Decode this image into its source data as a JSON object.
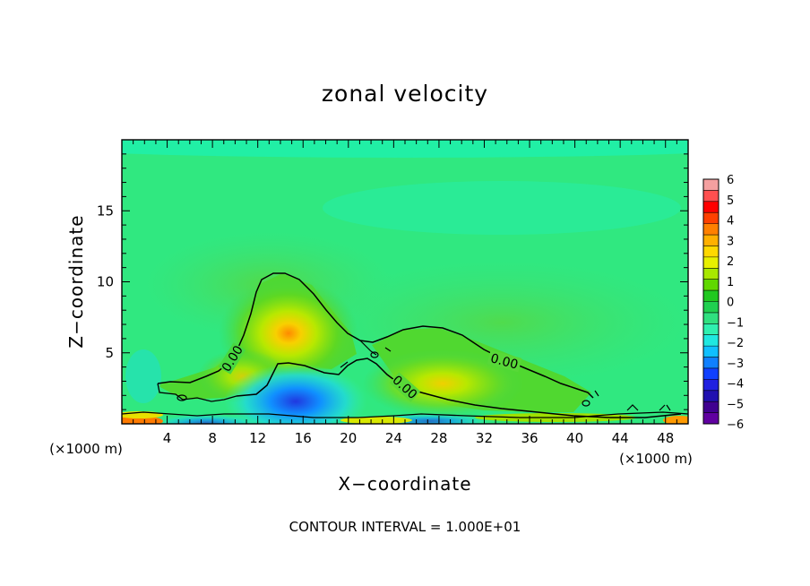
{
  "chart_data": {
    "type": "heatmap",
    "title": "zonal velocity",
    "xlabel": "X−coordinate",
    "ylabel": "Z−coordinate",
    "x_unit": "(×1000 m)",
    "x_unit_right": "(×1000 m)",
    "xlim": [
      0,
      50
    ],
    "ylim": [
      0,
      20
    ],
    "x_ticks": [
      4,
      8,
      12,
      16,
      20,
      24,
      28,
      32,
      36,
      40,
      44,
      48
    ],
    "y_ticks": [
      5,
      10,
      15
    ],
    "colorbar": {
      "ticks": [
        "6",
        "5",
        "4",
        "3",
        "2",
        "1",
        "0",
        "−1",
        "−2",
        "−3",
        "−4",
        "−5",
        "−6"
      ],
      "range": [
        -6,
        6
      ],
      "colors": [
        "#f4a0a0",
        "#ff5050",
        "#ff0000",
        "#ff4000",
        "#ff8000",
        "#ffb000",
        "#ffd800",
        "#e8f000",
        "#a8e800",
        "#60d800",
        "#20c820",
        "#20d050",
        "#30e080",
        "#30f0b0",
        "#20e8e0",
        "#10c0ff",
        "#1080ff",
        "#1040ff",
        "#2020e0",
        "#2010b0",
        "#400090",
        "#6000a0"
      ]
    },
    "contour_labels": [
      "0.00",
      "0.00",
      "0.00"
    ],
    "background_value": -0.6,
    "features": [
      {
        "name": "positive lobe 1",
        "x_center": 14,
        "z_center": 6,
        "peak": 2.5
      },
      {
        "name": "positive lobe 2",
        "x_center": 29,
        "z_center": 3,
        "peak": 1.5
      },
      {
        "name": "negative region",
        "x_center": 15,
        "z_center": 1,
        "peak": -5
      }
    ],
    "footnote": "CONTOUR INTERVAL = 1.000E+01"
  }
}
